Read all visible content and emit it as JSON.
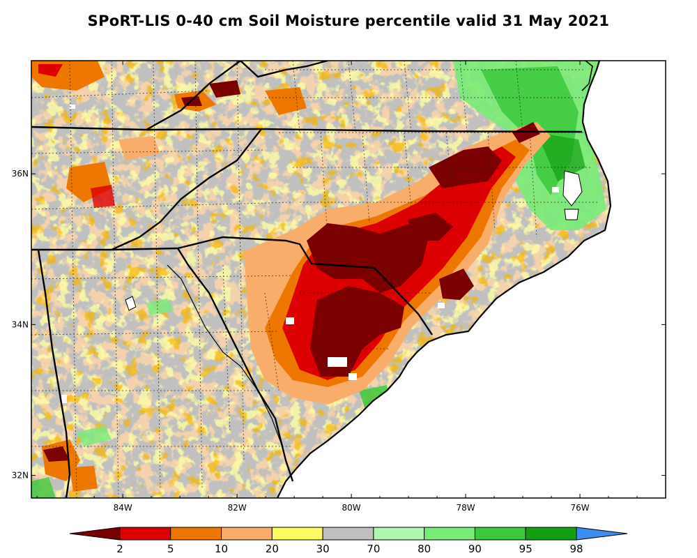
{
  "title": "SPoRT-LIS 0-40 cm Soil Moisture percentile valid 31 May 2021",
  "map": {
    "lon_range": [
      -85.6,
      -74.5
    ],
    "lat_range": [
      31.7,
      37.5
    ],
    "x_ticks": [
      {
        "lon": -84,
        "label": "84W"
      },
      {
        "lon": -82,
        "label": "82W"
      },
      {
        "lon": -80,
        "label": "80W"
      },
      {
        "lon": -78,
        "label": "78W"
      },
      {
        "lon": -76,
        "label": "76W"
      }
    ],
    "y_ticks": [
      {
        "lat": 36,
        "label": "36N"
      },
      {
        "lat": 34,
        "label": "34N"
      },
      {
        "lat": 32,
        "label": "32N"
      }
    ],
    "ocean_color": "#ffffff",
    "land_base_color": "#c0c0c0"
  },
  "colorbar": {
    "labels": [
      "2",
      "5",
      "10",
      "20",
      "30",
      "70",
      "80",
      "90",
      "95",
      "98"
    ],
    "under_color": "#7a0000",
    "over_color": "#3a8ef0",
    "colors": [
      "#dd0000",
      "#ee7700",
      "#f8ad6a",
      "#fcfc60",
      "#c0c0c0",
      "#b0f5b0",
      "#78eb78",
      "#3cc83c",
      "#12a012"
    ]
  }
}
